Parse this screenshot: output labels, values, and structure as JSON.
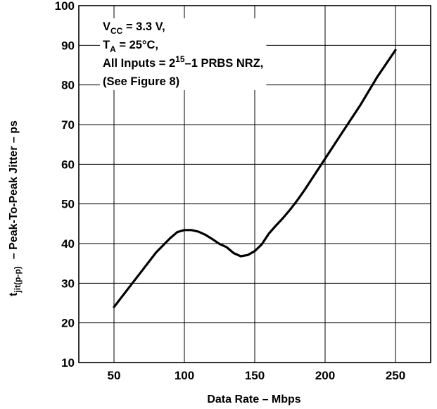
{
  "chart_data": {
    "type": "line",
    "xlabel": "Data Rate – Mbps",
    "ylabel": {
      "symbol": "t",
      "symbol_sub": "jit(p-p)",
      "text": "– Peak-To-Peak Jitter – ps"
    },
    "xlim": [
      25,
      275
    ],
    "ylim": [
      10,
      100
    ],
    "x_ticks": [
      50,
      100,
      150,
      200,
      250
    ],
    "y_ticks": [
      10,
      20,
      30,
      40,
      50,
      60,
      70,
      80,
      90,
      100
    ],
    "grid": true,
    "annotation": {
      "line1": {
        "pre": "V",
        "sub": "CC",
        "post": " = 3.3 V,"
      },
      "line2": {
        "pre": "T",
        "sub": "A",
        "post": " = 25°C,"
      },
      "line3": {
        "pre": "All Inputs = 2",
        "sup": "15",
        "post": "–1 PRBS NRZ,"
      },
      "line4": {
        "text": "(See Figure 8)"
      }
    },
    "series": [
      {
        "x": [
          50,
          60,
          70,
          80,
          90,
          95,
          100,
          105,
          110,
          115,
          120,
          125,
          130,
          135,
          140,
          145,
          150,
          155,
          160,
          165,
          170,
          175,
          180,
          185,
          190,
          200,
          212,
          225,
          237,
          250
        ],
        "y": [
          24,
          28.6,
          33.2,
          37.8,
          41.4,
          42.9,
          43.4,
          43.4,
          43,
          42.2,
          41.1,
          39.9,
          39.1,
          37.6,
          36.8,
          37.1,
          38.1,
          39.8,
          42.5,
          44.5,
          46.4,
          48.5,
          50.8,
          53.3,
          56,
          61.4,
          67.9,
          74.9,
          82,
          88.8
        ]
      }
    ]
  }
}
